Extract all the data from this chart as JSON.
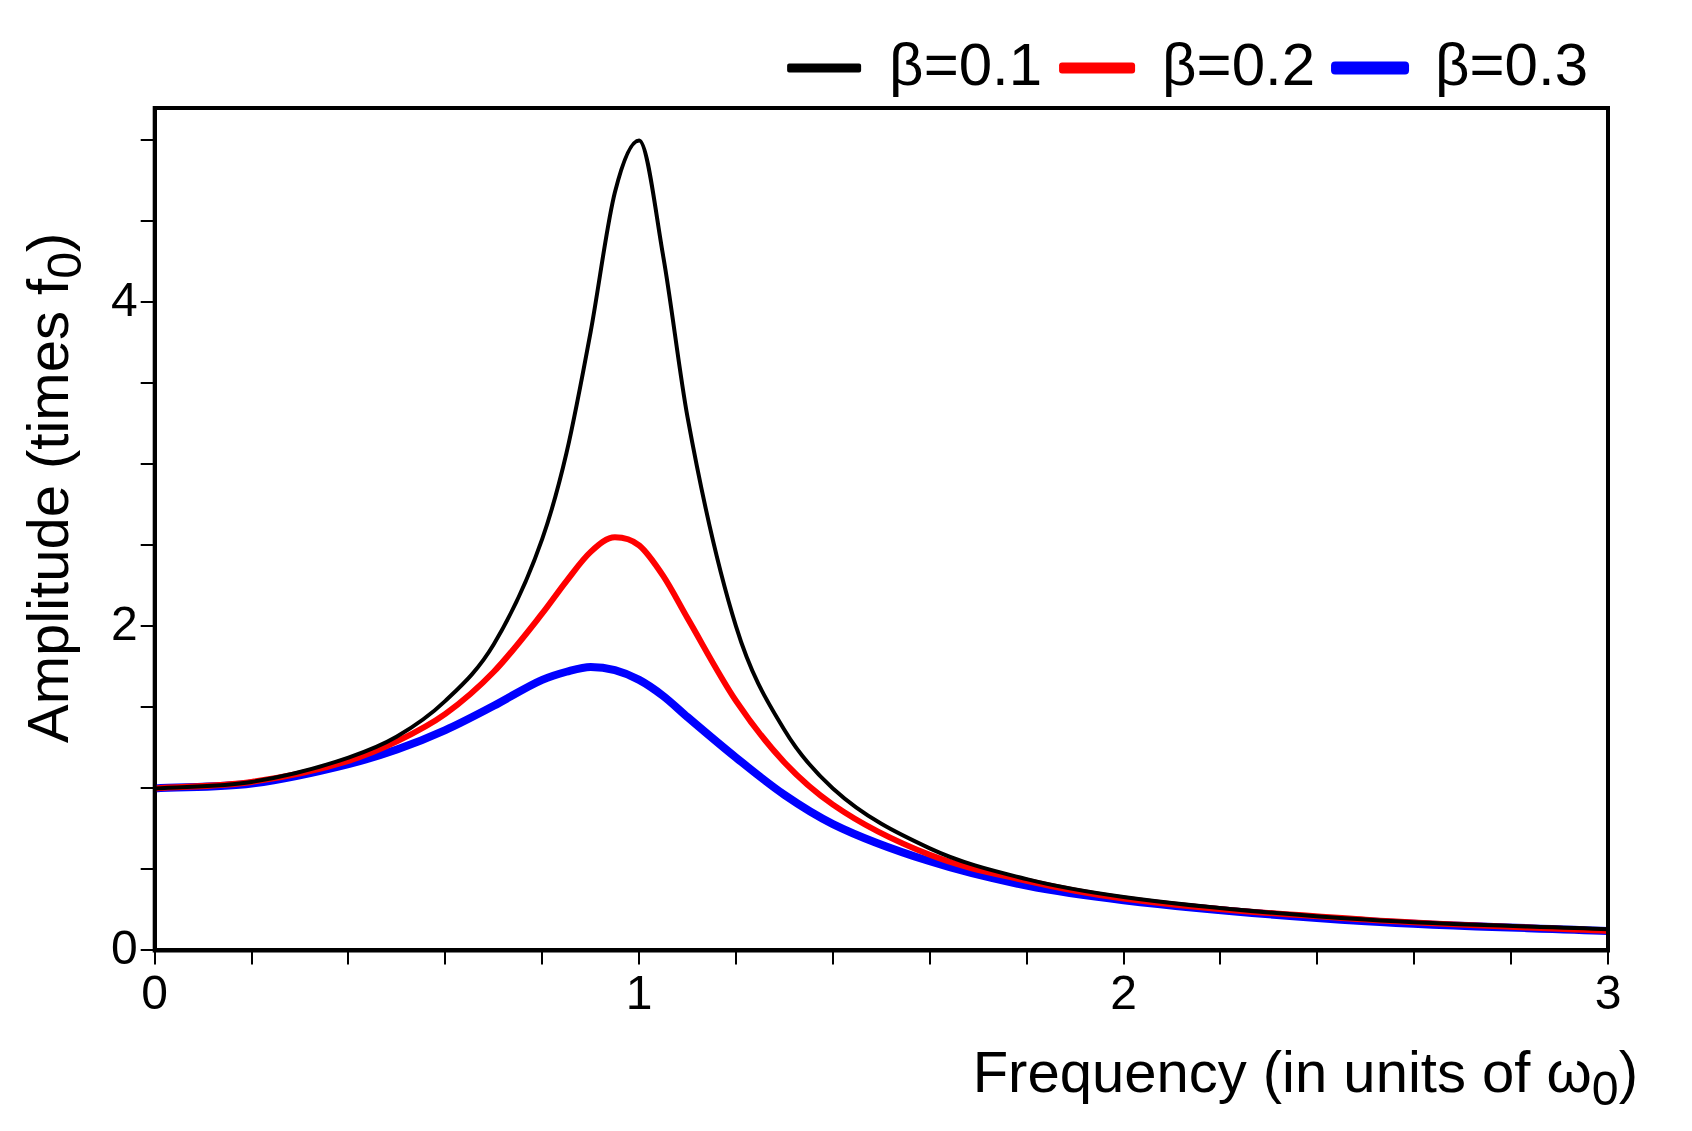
{
  "chart_data": {
    "type": "line",
    "xlabel": "Frequency (in units of ω$_{0}$)",
    "ylabel": "Amplitude (times f$_{0}$)",
    "x": [
      0,
      0.2,
      0.4,
      0.5,
      0.6,
      0.7,
      0.8,
      0.85,
      0.9,
      0.95,
      1,
      1.05,
      1.1,
      1.2,
      1.3,
      1.4,
      1.6,
      1.8,
      2,
      2.5,
      3
    ],
    "series": [
      {
        "name": "β=0.1",
        "color": "#000000",
        "values": [
          1,
          1.04,
          1.19,
          1.32,
          1.54,
          1.89,
          2.54,
          3.07,
          3.82,
          4.68,
          5,
          4.28,
          3.29,
          2,
          1.36,
          1,
          0.63,
          0.44,
          0.33,
          0.19,
          0.13
        ]
      },
      {
        "name": "β=0.2",
        "color": "#ff0000",
        "values": [
          1,
          1.04,
          1.17,
          1.29,
          1.46,
          1.72,
          2.08,
          2.28,
          2.46,
          2.55,
          2.5,
          2.31,
          2.05,
          1.54,
          1.16,
          0.9,
          0.59,
          0.43,
          0.32,
          0.19,
          0.12
        ]
      },
      {
        "name": "β=0.3",
        "color": "#0000ff",
        "values": [
          1,
          1.03,
          1.15,
          1.24,
          1.36,
          1.51,
          1.67,
          1.72,
          1.75,
          1.73,
          1.67,
          1.57,
          1.44,
          1.19,
          0.96,
          0.78,
          0.55,
          0.4,
          0.31,
          0.18,
          0.12
        ]
      }
    ],
    "xlim": [
      0,
      3
    ],
    "xticks": [
      0,
      {
        "value": 0.2,
        "label": null
      },
      {
        "value": 0.4,
        "label": null
      },
      {
        "value": 0.6,
        "label": null
      },
      {
        "value": 0.8,
        "label": null
      },
      1,
      {
        "value": 1.2,
        "label": null
      },
      {
        "value": 1.4,
        "label": null
      },
      {
        "value": 1.6,
        "label": null
      },
      {
        "value": 1.8,
        "label": null
      },
      2,
      {
        "value": 2.2,
        "label": null
      },
      {
        "value": 2.4,
        "label": null
      },
      {
        "value": 2.6,
        "label": null
      },
      {
        "value": 2.8,
        "label": null
      },
      3
    ],
    "ylim": [
      0,
      5.2
    ],
    "yticks": [
      0,
      {
        "value": 0.5,
        "label": null
      },
      {
        "value": 1,
        "label": null
      },
      {
        "value": 1.5,
        "label": null
      },
      2,
      {
        "value": 2.5,
        "label": null
      },
      {
        "value": 3,
        "label": null
      },
      {
        "value": 3.5,
        "label": null
      },
      4,
      {
        "value": 4.5,
        "label": null
      },
      {
        "value": 5,
        "label": null
      }
    ],
    "grid": false,
    "legend": "top right",
    "line_style": "solid",
    "marker": "none"
  }
}
